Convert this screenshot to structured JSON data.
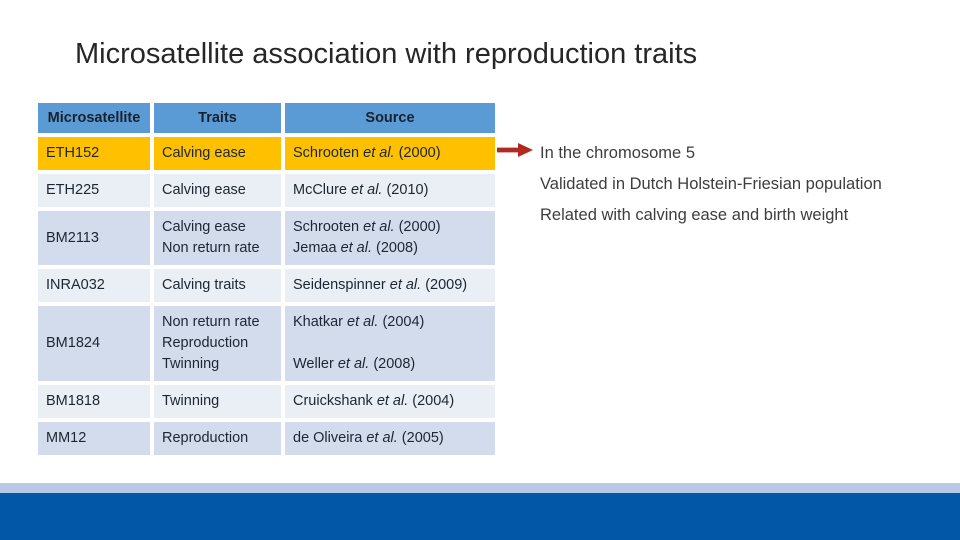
{
  "slide": {
    "title": "Microsatellite association with reproduction traits"
  },
  "table": {
    "headers": [
      "Microsatellite",
      "Traits",
      "Source"
    ],
    "rows": [
      {
        "marker": "ETH152",
        "traits": [
          "Calving ease"
        ],
        "sources": [
          "Schrooten et al. (2000)"
        ],
        "highlight": true
      },
      {
        "marker": "ETH225",
        "traits": [
          "Calving ease"
        ],
        "sources": [
          "McClure et al. (2010)"
        ]
      },
      {
        "marker": "BM2113",
        "traits": [
          "Calving ease",
          "Non return rate"
        ],
        "sources": [
          "Schrooten et al. (2000)",
          "Jemaa et al. (2008)"
        ]
      },
      {
        "marker": "INRA032",
        "traits": [
          "Calving traits"
        ],
        "sources": [
          "Seidenspinner et al. (2009)"
        ]
      },
      {
        "marker": "BM1824",
        "traits": [
          "Non return rate",
          "Reproduction",
          "Twinning"
        ],
        "sources": [
          "Khatkar et al. (2004)",
          "",
          "Weller et al. (2008)"
        ]
      },
      {
        "marker": "BM1818",
        "traits": [
          "Twinning"
        ],
        "sources": [
          "Cruickshank et al. (2004)"
        ]
      },
      {
        "marker": "MM12",
        "traits": [
          "Reproduction"
        ],
        "sources": [
          "de Oliveira et al. (2005)"
        ]
      }
    ]
  },
  "annotation": {
    "arrow_icon": "right-arrow",
    "lines": [
      "In the chromosome 5",
      "Validated in Dutch Holstein-Friesian population",
      "Related with calving ease and birth weight"
    ]
  },
  "colors": {
    "header_bg": "#5B9BD5",
    "highlight_bg": "#FFC000",
    "band_light": "#EAEEF5",
    "band_dark": "#D3DCEC",
    "arrow": "#B02A20",
    "footer_light": "#B7C9E5",
    "footer_dark": "#0357A7"
  }
}
